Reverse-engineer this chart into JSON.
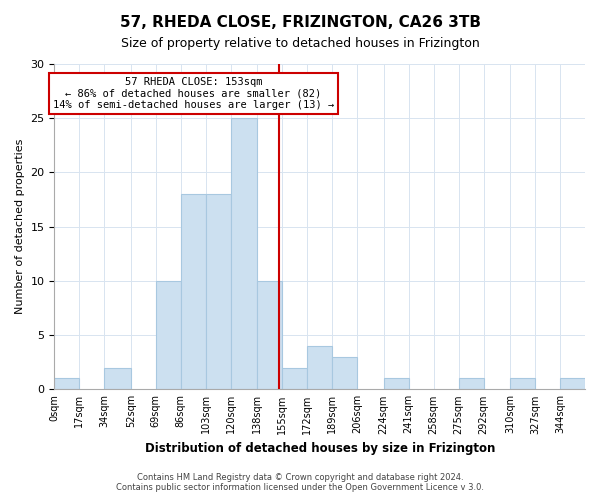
{
  "title": "57, RHEDA CLOSE, FRIZINGTON, CA26 3TB",
  "subtitle": "Size of property relative to detached houses in Frizington",
  "xlabel": "Distribution of detached houses by size in Frizington",
  "ylabel": "Number of detached properties",
  "footer_line1": "Contains HM Land Registry data © Crown copyright and database right 2024.",
  "footer_line2": "Contains public sector information licensed under the Open Government Licence v 3.0.",
  "bin_edges": [
    0,
    17,
    34,
    52,
    69,
    86,
    103,
    120,
    138,
    155,
    172,
    189,
    206,
    224,
    241,
    258,
    275,
    292,
    310,
    327,
    344,
    361
  ],
  "bin_labels": [
    "0sqm",
    "17sqm",
    "34sqm",
    "52sqm",
    "69sqm",
    "86sqm",
    "103sqm",
    "120sqm",
    "138sqm",
    "155sqm",
    "172sqm",
    "189sqm",
    "206sqm",
    "224sqm",
    "241sqm",
    "258sqm",
    "275sqm",
    "292sqm",
    "310sqm",
    "327sqm",
    "344sqm"
  ],
  "counts": [
    1,
    0,
    2,
    0,
    10,
    18,
    18,
    25,
    10,
    2,
    4,
    3,
    0,
    1,
    0,
    0,
    1,
    0,
    1,
    0,
    1
  ],
  "bar_color": "#cce0f0",
  "bar_edge_color": "#a8c8e0",
  "reference_line_x": 153,
  "reference_line_color": "#cc0000",
  "annotation_title": "57 RHEDA CLOSE: 153sqm",
  "annotation_line1": "← 86% of detached houses are smaller (82)",
  "annotation_line2": "14% of semi-detached houses are larger (13) →",
  "annotation_box_color": "#ffffff",
  "annotation_box_edge_color": "#cc0000",
  "ylim": [
    0,
    30
  ],
  "xlim_min": 0,
  "xlim_max": 361,
  "yticks": [
    0,
    5,
    10,
    15,
    20,
    25,
    30
  ],
  "grid_color": "#d8e4f0",
  "title_fontsize": 11,
  "subtitle_fontsize": 9,
  "ylabel_fontsize": 8,
  "xlabel_fontsize": 8.5,
  "tick_fontsize": 7,
  "footer_fontsize": 6
}
